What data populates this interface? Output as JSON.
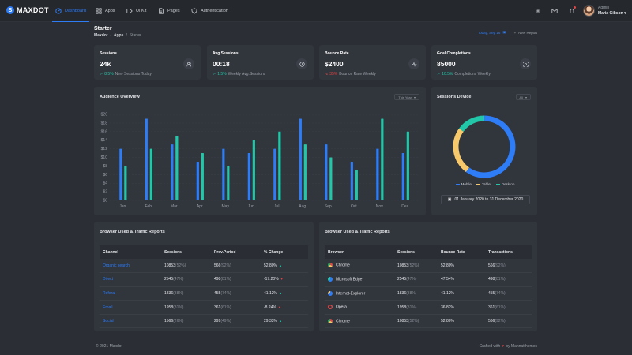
{
  "brand": {
    "name": "MAXDOT"
  },
  "nav": [
    {
      "label": "Dashboard",
      "icon": "dashboard-icon",
      "active": true
    },
    {
      "label": "Apps",
      "icon": "apps-grid-icon"
    },
    {
      "label": "UI Kit",
      "icon": "ui-kit-icon"
    },
    {
      "label": "Pages",
      "icon": "pages-icon"
    },
    {
      "label": "Authentication",
      "icon": "shield-icon"
    }
  ],
  "topbar_icons": [
    "gear-icon",
    "mail-icon",
    "bell-icon"
  ],
  "user": {
    "role": "Admin",
    "name": "Maria Gibson"
  },
  "page": {
    "title": "Starter",
    "breadcrumb": [
      "Maxdot",
      "Apps",
      "Starter"
    ]
  },
  "actions": {
    "today": "Today, Sep 16",
    "new_report": "New Report"
  },
  "stats": [
    {
      "title": "Sessions",
      "value": "24k",
      "change": "8.5%",
      "trend": "up",
      "note": "New Sessions Today",
      "icon": "users-icon"
    },
    {
      "title": "Avg.Sessions",
      "value": "00:18",
      "change": "1.5%",
      "trend": "up",
      "note": "Weekly Avg.Sessions",
      "icon": "clock-icon"
    },
    {
      "title": "Bounce Rate",
      "value": "$2400",
      "change": "35%",
      "trend": "down",
      "note": "Bounce Rate Weekly",
      "icon": "activity-icon"
    },
    {
      "title": "Goal Completions",
      "value": "85000",
      "change": "10.5%",
      "trend": "up",
      "note": "Completions Weekly",
      "icon": "target-icon"
    }
  ],
  "audience": {
    "title": "Audience Overview",
    "filter": "This Year"
  },
  "chart_data": [
    {
      "type": "bar",
      "title": "Audience Overview",
      "categories": [
        "Jan",
        "Feb",
        "Mar",
        "Apr",
        "May",
        "Jun",
        "Jul",
        "Aug",
        "Sep",
        "Oct",
        "Nov",
        "Dec"
      ],
      "series": [
        {
          "color": "#2e7cf6",
          "values": [
            12,
            19,
            13,
            9,
            12,
            11,
            12,
            19,
            13,
            9,
            12,
            11
          ]
        },
        {
          "color": "#22c6a8",
          "values": [
            8,
            12,
            15,
            11,
            8,
            14,
            16,
            13,
            10,
            7,
            19,
            16
          ]
        }
      ],
      "ylim": [
        0,
        20
      ],
      "yticks": [
        "$0",
        "$2",
        "$4",
        "$6",
        "$8",
        "$10",
        "$12",
        "$14",
        "$16",
        "$18",
        "$20"
      ],
      "grid": true
    },
    {
      "type": "pie",
      "title": "Sessions Device",
      "categories": [
        "Mobile",
        "Tablet",
        "Desktop"
      ],
      "values": [
        60,
        25,
        15
      ],
      "colors": [
        "#2e7cf6",
        "#f7c96b",
        "#22c6a8"
      ],
      "legend": "bottom"
    }
  ],
  "device": {
    "title": "Sessions Device",
    "filter": "All",
    "legend": [
      "Mobile",
      "Tablet",
      "Desktop"
    ],
    "date_range": "01 January 2020 to 31 December 2020"
  },
  "table1": {
    "title": "Browser Used & Traffic Reports",
    "headers": [
      "Channel",
      "Sessions",
      "Prev.Period",
      "% Change"
    ],
    "rows": [
      {
        "channel": "Organic search",
        "sessions": "10853",
        "sessions_pct": "(52%)",
        "prev": "566",
        "prev_pct": "(92%)",
        "change": "52.80%",
        "trend": "up"
      },
      {
        "channel": "Direct",
        "sessions": "2545",
        "sessions_pct": "(47%)",
        "prev": "498",
        "prev_pct": "(81%)",
        "change": "-17.20%",
        "trend": "down"
      },
      {
        "channel": "Referal",
        "sessions": "1836",
        "sessions_pct": "(38%)",
        "prev": "455",
        "prev_pct": "(74%)",
        "change": "41.12%",
        "trend": "up"
      },
      {
        "channel": "Email",
        "sessions": "1958",
        "sessions_pct": "(31%)",
        "prev": "361",
        "prev_pct": "(61%)",
        "change": "-8.24%",
        "trend": "down"
      },
      {
        "channel": "Social",
        "sessions": "1566",
        "sessions_pct": "(26%)",
        "prev": "299",
        "prev_pct": "(49%)",
        "change": "29.33%",
        "trend": "up"
      }
    ]
  },
  "table2": {
    "title": "Browser Used & Traffic Reports",
    "headers": [
      "Browser",
      "Sessions",
      "Bounce Rate",
      "Transactions"
    ],
    "rows": [
      {
        "browser": "Chrome",
        "icon": "chrome-icon",
        "sessions": "10853",
        "sessions_pct": "(52%)",
        "bounce": "52.80%",
        "trans": "566",
        "trans_pct": "(92%)"
      },
      {
        "browser": "Microsoft Edge",
        "icon": "edge-icon",
        "sessions": "2545",
        "sessions_pct": "(47%)",
        "bounce": "47.54%",
        "trans": "498",
        "trans_pct": "(81%)"
      },
      {
        "browser": "Internet-Explorer",
        "icon": "ie-icon",
        "sessions": "1836",
        "sessions_pct": "(38%)",
        "bounce": "41.12%",
        "trans": "455",
        "trans_pct": "(74%)"
      },
      {
        "browser": "Opera",
        "icon": "opera-icon",
        "sessions": "1958",
        "sessions_pct": "(31%)",
        "bounce": "36.82%",
        "trans": "361",
        "trans_pct": "(61%)"
      },
      {
        "browser": "Chrome",
        "icon": "chrome-icon",
        "sessions": "10853",
        "sessions_pct": "(52%)",
        "bounce": "52.80%",
        "trans": "566",
        "trans_pct": "(92%)"
      }
    ]
  },
  "footer": {
    "copyright": "© 2021 Maxdot",
    "crafted_prefix": "Crafted with",
    "crafted_suffix": "by Mannatthemes"
  }
}
